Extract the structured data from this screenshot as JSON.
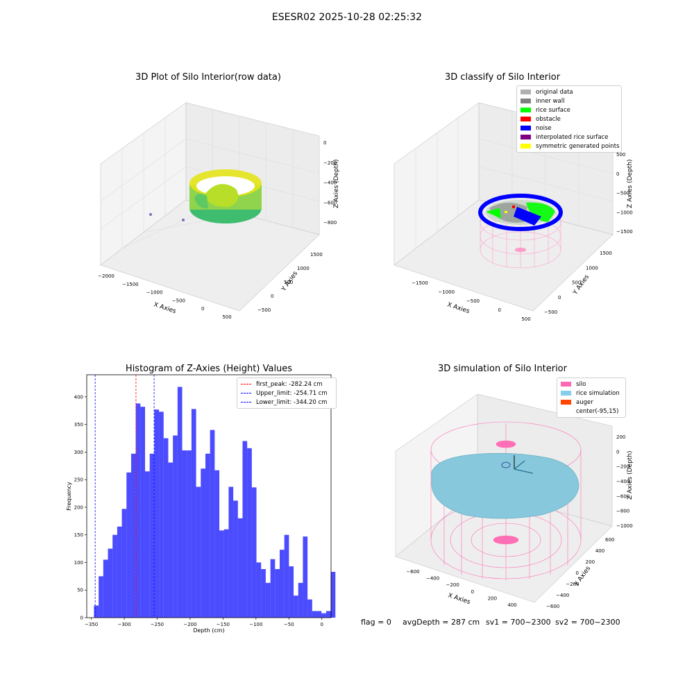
{
  "suptitle": "ESESR02 2025-10-28 02:25:32",
  "panels": {
    "raw": {
      "title": "3D Plot of Silo Interior(row data)",
      "xlabel": "X Axies",
      "ylabel": "Y Axies",
      "zlabel": "Z Axies (Depth)",
      "xticks": [
        "−2000",
        "−1500",
        "−1000",
        "−500",
        "0",
        "500"
      ],
      "yticks": [
        "−500",
        "0",
        "500",
        "1000",
        "1500"
      ],
      "zticks": [
        "0",
        "−200",
        "−400",
        "−600",
        "−800"
      ]
    },
    "classify": {
      "title": "3D classify of Silo Interior",
      "xlabel": "X Axies",
      "ylabel": "Y Axies",
      "zlabel": "Z Axies (Depth)",
      "xticks": [
        "−1500",
        "−1000",
        "−500",
        "0",
        "500"
      ],
      "yticks": [
        "−500",
        "0",
        "500",
        "1000",
        "1500"
      ],
      "zticks": [
        "500",
        "0",
        "−500",
        "−1000",
        "−1500"
      ],
      "legend": [
        {
          "label": "original data",
          "color": "#b0b0b0"
        },
        {
          "label": "inner wall",
          "color": "#808080"
        },
        {
          "label": "rice surface",
          "color": "#00ff00"
        },
        {
          "label": "obstacle",
          "color": "#ff0000"
        },
        {
          "label": "noise",
          "color": "#0000ff"
        },
        {
          "label": "interpolated rice surface",
          "color": "#800080"
        },
        {
          "label": "symmetric generated points",
          "color": "#ffff00"
        }
      ]
    },
    "simulation": {
      "title": "3D simulation of Silo Interior",
      "xlabel": "X Axies",
      "ylabel": "Y Axies",
      "zlabel": "Z Axies (Depth)",
      "xticks": [
        "−600",
        "−400",
        "−200",
        "0",
        "200",
        "400"
      ],
      "yticks": [
        "−600",
        "−400",
        "−200",
        "0",
        "200",
        "400",
        "600"
      ],
      "zticks": [
        "200",
        "0",
        "−200",
        "−400",
        "−600",
        "−800",
        "−1000"
      ],
      "legend": [
        {
          "label": "silo",
          "color": "#ff69b4"
        },
        {
          "label": "rice simulation",
          "color": "#87ceeb"
        },
        {
          "label": "auger",
          "color": "#ff4500"
        },
        {
          "label": "center(-95,15)",
          "color": ""
        }
      ]
    }
  },
  "chart_data": {
    "type": "bar",
    "title": "Histogram of Z-Axies (Height) Values",
    "xlabel": "Depth (cm)",
    "ylabel": "Frequency",
    "xlim": [
      -357,
      14
    ],
    "ylim": [
      0,
      440
    ],
    "xticks": [
      -350,
      -300,
      -250,
      -200,
      -150,
      -100,
      -50,
      0
    ],
    "yticks": [
      0,
      50,
      100,
      150,
      200,
      250,
      300,
      350,
      400
    ],
    "bin_start": -346,
    "bin_width": 7.05,
    "bar_color": "#0000ff",
    "values": [
      22,
      75,
      105,
      125,
      150,
      165,
      197,
      263,
      297,
      388,
      382,
      265,
      297,
      377,
      373,
      325,
      281,
      330,
      418,
      303,
      303,
      378,
      237,
      270,
      297,
      340,
      267,
      158,
      160,
      237,
      212,
      180,
      320,
      307,
      236,
      100,
      88,
      63,
      106,
      88,
      123,
      150,
      93,
      40,
      63,
      147,
      33,
      12,
      12,
      8,
      12,
      83
    ],
    "vlines": [
      {
        "label": "first_peak: -282.24 cm",
        "x": -282.24,
        "color": "#ff0000"
      },
      {
        "label": "Upper_limit: -254.71 cm",
        "x": -254.71,
        "color": "#0000ff"
      },
      {
        "label": "Lower_limit: -344.20 cm",
        "x": -344.2,
        "color": "#0000ff"
      }
    ],
    "legend_position": "upper right"
  },
  "footer": {
    "flag": "flag = 0",
    "avg": "avgDepth = 287 cm",
    "sv1": "sv1 = 700~2300",
    "sv2": "sv2 = 700~2300"
  }
}
